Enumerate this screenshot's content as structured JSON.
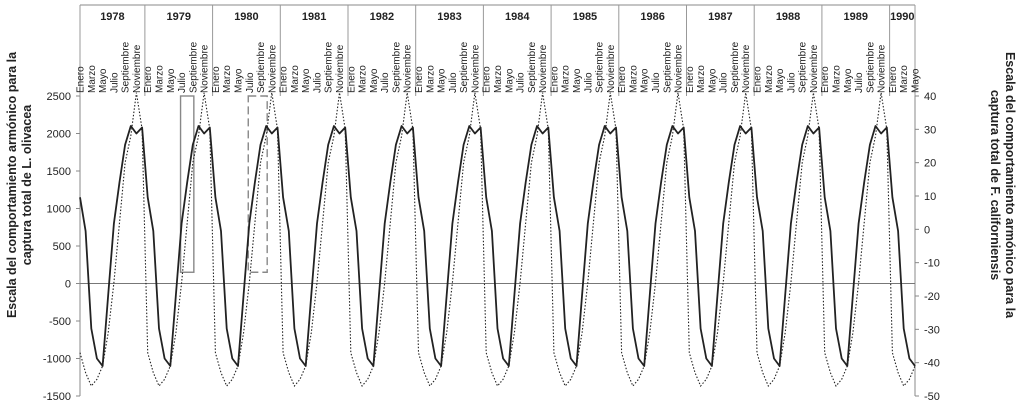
{
  "chart_data": {
    "type": "line",
    "title": "",
    "years": [
      "1978",
      "1979",
      "1980",
      "1981",
      "1982",
      "1983",
      "1984",
      "1985",
      "1986",
      "1987",
      "1988",
      "1989",
      "1990"
    ],
    "month_labels": [
      "Enero",
      "Marzo",
      "Mayo",
      "Julio",
      "Septiembre",
      "Noviembre"
    ],
    "last_year_month_labels": [
      "Enero",
      "Marzo",
      "Mayo"
    ],
    "ylabel_left": [
      "Escala del comportamiento armónico para la",
      "captura total de L. olivacea"
    ],
    "ylabel_right": [
      "Escala del comportamiento armónico para la",
      "captura total de F. californiensis"
    ],
    "ylim_left": [
      -1500,
      2500
    ],
    "yticks_left": [
      -1500,
      -1000,
      -500,
      0,
      500,
      1000,
      1500,
      2000,
      2500
    ],
    "ylim_right": [
      -50,
      40
    ],
    "yticks_right": [
      -50,
      -40,
      -30,
      -20,
      -10,
      0,
      10,
      20,
      30,
      40
    ],
    "zero_line": true,
    "series": [
      {
        "axis": "left",
        "style": "solid",
        "annual_pattern": [
          1150,
          700,
          -600,
          -1000,
          -1100,
          -150,
          800,
          1350,
          1850,
          2100,
          2000,
          2080
        ]
      },
      {
        "axis": "right",
        "style": "dotted",
        "annual_pattern": [
          -37,
          -43,
          -47,
          -45,
          -41,
          -31,
          -16,
          2,
          20,
          28,
          41,
          30
        ]
      }
    ],
    "annotations": [
      {
        "style": "solid-rect",
        "x_range": [
          "1979-07",
          "1979-09"
        ],
        "y_range": [
          150,
          2500
        ]
      },
      {
        "style": "dashed-rect",
        "x_range": [
          "1980-07",
          "1980-10"
        ],
        "y_range": [
          150,
          2500
        ]
      }
    ]
  }
}
